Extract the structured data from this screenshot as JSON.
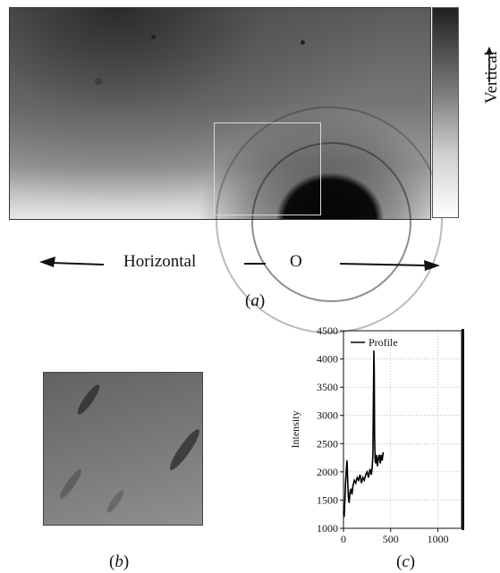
{
  "panel_a": {
    "vertical_label": "Vertical",
    "horizontal_label": "Horizontal",
    "origin_label": "O",
    "caption": "a"
  },
  "panel_b": {
    "caption": "b"
  },
  "panel_c": {
    "caption": "c"
  },
  "chart_data": {
    "type": "line",
    "title": "",
    "xlabel": "",
    "ylabel": "Intensity",
    "xlim": [
      0,
      1250
    ],
    "ylim": [
      1000,
      4500
    ],
    "xticks": [
      0,
      500,
      1000
    ],
    "yticks": [
      1000,
      1500,
      2000,
      2500,
      3000,
      3500,
      4000,
      4500
    ],
    "grid": true,
    "legend": "top-left",
    "series": [
      {
        "name": "Profile",
        "color": "#000000",
        "x": [
          0,
          8,
          15,
          22,
          30,
          38,
          45,
          52,
          60,
          70,
          80,
          90,
          100,
          115,
          130,
          145,
          160,
          175,
          190,
          205,
          220,
          235,
          250,
          265,
          280,
          295,
          305,
          312,
          318,
          322,
          326,
          330,
          335,
          342,
          350,
          360,
          370,
          380,
          390,
          400,
          410,
          420
        ],
        "y": [
          1300,
          1200,
          1500,
          1800,
          2050,
          2200,
          1800,
          1550,
          1450,
          1650,
          1700,
          1600,
          1750,
          1850,
          1800,
          1900,
          1850,
          1950,
          1800,
          1900,
          1850,
          1950,
          2000,
          1900,
          2050,
          1950,
          2100,
          2300,
          3500,
          4150,
          3800,
          2600,
          2200,
          2150,
          2300,
          2100,
          2250,
          2300,
          2150,
          2300,
          2200,
          2350
        ]
      }
    ]
  }
}
